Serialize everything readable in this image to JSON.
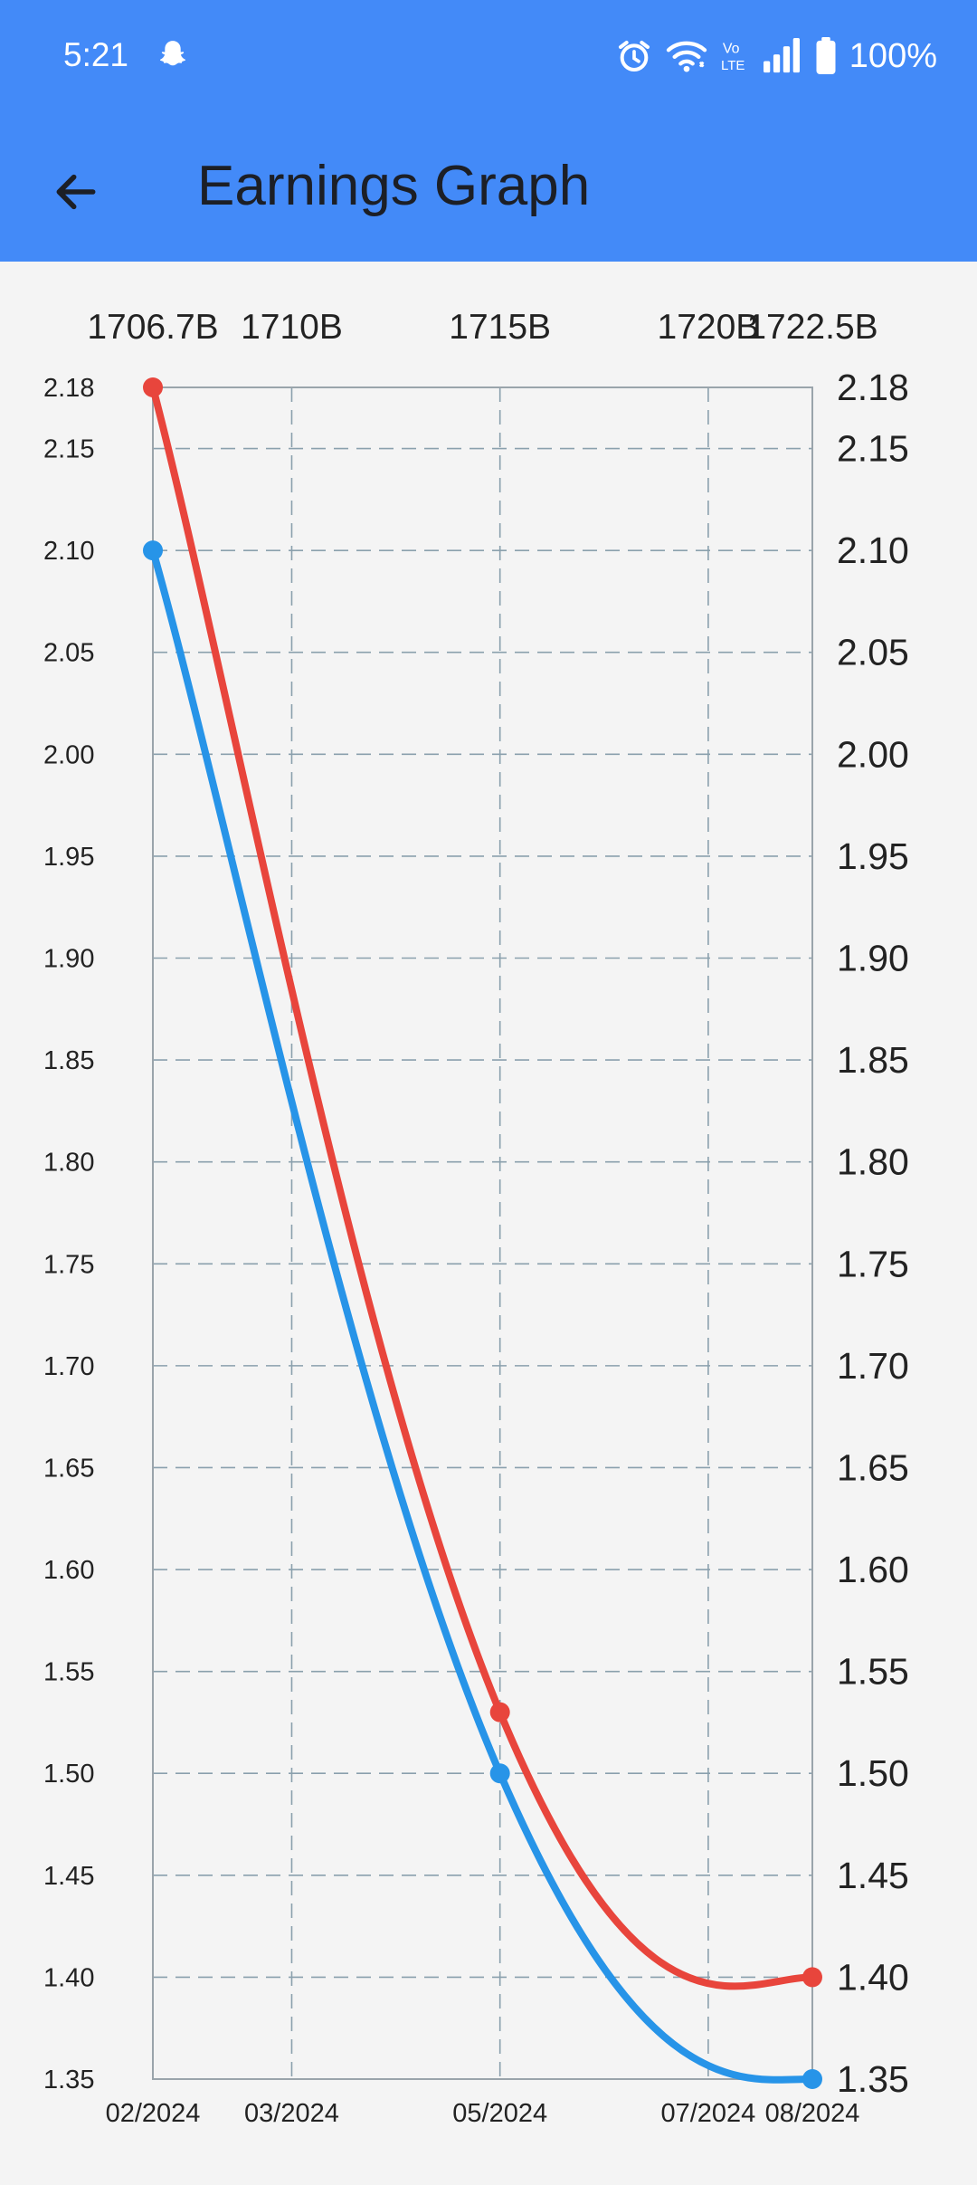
{
  "status_bar": {
    "time": "5:21",
    "battery": "100%",
    "icons": [
      "snapchat-ghost-icon",
      "alarm-icon",
      "wifi-icon",
      "volte-icon",
      "signal-icon",
      "battery-icon"
    ]
  },
  "toolbar": {
    "title": "Earnings Graph",
    "back_icon": "arrow-back-icon",
    "background": "#438af8"
  },
  "chart_data": {
    "type": "line",
    "title": "",
    "x_bottom": {
      "range": [
        0,
        6
      ],
      "ticks": [
        {
          "at": 0,
          "label": "02/2024"
        },
        {
          "at": 1,
          "label": "03/2024"
        },
        {
          "at": 2.5,
          "label": "05/2024"
        },
        {
          "at": 4,
          "label": "07/2024"
        },
        {
          "at": 4.75,
          "label": "08/2024"
        }
      ]
    },
    "x_top": {
      "ticks": [
        {
          "at": 0,
          "label": "1706.7B"
        },
        {
          "at": 1,
          "label": "1710B"
        },
        {
          "at": 2.5,
          "label": "1715B"
        },
        {
          "at": 4,
          "label": "1720B"
        },
        {
          "at": 4.75,
          "label": "1722.5B"
        }
      ]
    },
    "y": {
      "range": [
        1.35,
        2.18
      ],
      "ticks": [
        "1.35",
        "1.40",
        "1.45",
        "1.50",
        "1.55",
        "1.60",
        "1.65",
        "1.70",
        "1.75",
        "1.80",
        "1.85",
        "1.90",
        "1.95",
        "2.00",
        "2.05",
        "2.10",
        "2.15",
        "2.18"
      ]
    },
    "grid": true,
    "series": [
      {
        "color": "#e8453c",
        "points": [
          {
            "x": "02/2024",
            "y": 2.18
          },
          {
            "x": "05/2024",
            "y": 1.53
          },
          {
            "x": "08/2024",
            "y": 1.4
          }
        ]
      },
      {
        "color": "#2794e8",
        "points": [
          {
            "x": "02/2024",
            "y": 2.1
          },
          {
            "x": "05/2024",
            "y": 1.5
          },
          {
            "x": "08/2024",
            "y": 1.35
          }
        ]
      }
    ]
  }
}
